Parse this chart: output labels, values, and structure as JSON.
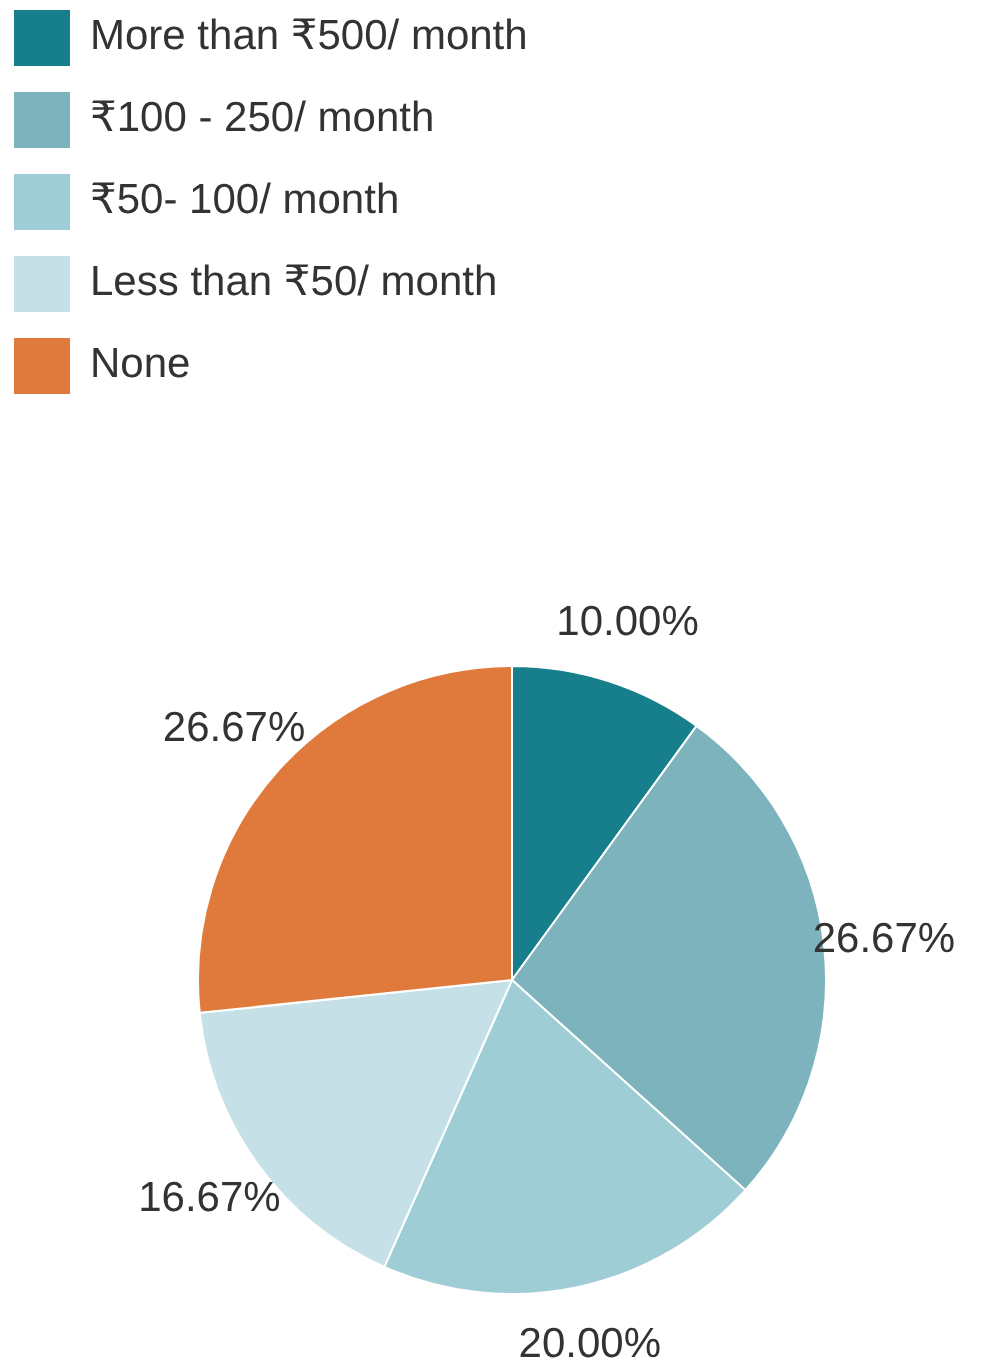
{
  "chart_data": {
    "type": "pie",
    "categories": [
      "More than ₹500/ month",
      "₹100 - 250/ month",
      "₹50- 100/ month",
      "Less than ₹50/ month",
      "None"
    ],
    "values": [
      10.0,
      26.67,
      20.0,
      16.67,
      26.67
    ],
    "colors": [
      "#177e8c",
      "#7db3bc",
      "#9fcdd5",
      "#c5e1e7",
      "#e07a3c"
    ],
    "value_labels": [
      "10.00%",
      "26.67%",
      "20.00%",
      "16.67%",
      "26.67%"
    ],
    "legend": "top left"
  }
}
